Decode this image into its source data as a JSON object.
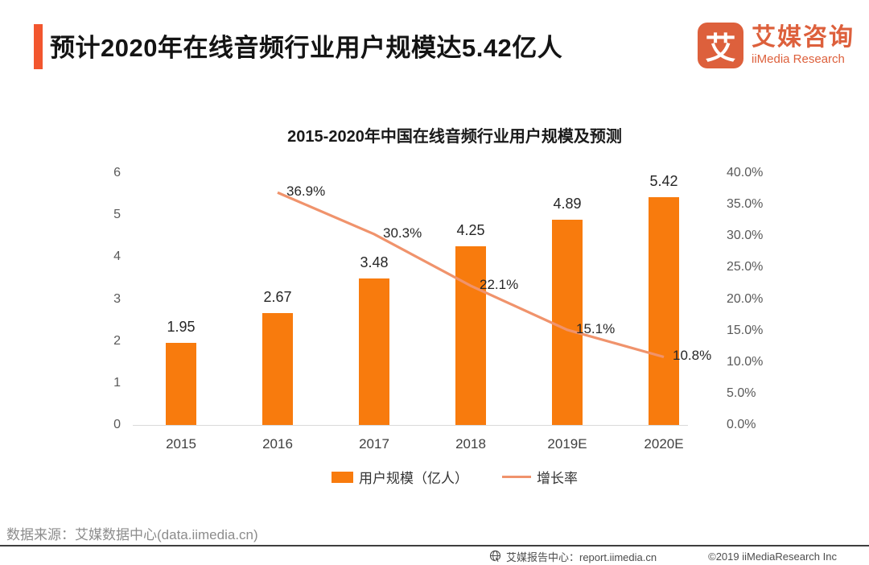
{
  "header": {
    "title": "预计2020年在线音频行业用户规模达5.42亿人",
    "accent_color": "#F2562E"
  },
  "logo": {
    "mark_glyph": "艾",
    "name_cn": "艾媒咨询",
    "name_en": "iiMedia Research",
    "brand_color": "#DD603C"
  },
  "chart_data": {
    "type": "bar",
    "title": "2015-2020年中国在线音频行业用户规模及预测",
    "categories": [
      "2015",
      "2016",
      "2017",
      "2018",
      "2019E",
      "2020E"
    ],
    "series": [
      {
        "name": "用户规模（亿人）",
        "type": "bar",
        "axis": "left",
        "color": "#F87B0D",
        "values": [
          1.95,
          2.67,
          3.48,
          4.25,
          4.89,
          5.42
        ],
        "labels": [
          "1.95",
          "2.67",
          "3.48",
          "4.25",
          "4.89",
          "5.42"
        ]
      },
      {
        "name": "增长率",
        "type": "line",
        "axis": "right",
        "color": "#F0936C",
        "values": [
          null,
          36.9,
          30.3,
          22.1,
          15.1,
          10.8
        ],
        "labels": [
          null,
          "36.9%",
          "30.3%",
          "22.1%",
          "15.1%",
          "10.8%"
        ]
      }
    ],
    "left_axis": {
      "min": 0,
      "max": 6,
      "ticks": [
        "0",
        "1",
        "2",
        "3",
        "4",
        "5",
        "6"
      ]
    },
    "right_axis": {
      "min": 0,
      "max": 40,
      "ticks": [
        "0.0%",
        "5.0%",
        "10.0%",
        "15.0%",
        "20.0%",
        "25.0%",
        "30.0%",
        "35.0%",
        "40.0%"
      ]
    },
    "grid": false,
    "legend_position": "bottom"
  },
  "source": {
    "text": "数据来源：艾媒数据中心(data.iimedia.cn)"
  },
  "footer": {
    "report_center": "艾媒报告中心：report.iimedia.cn",
    "copyright": "©2019  iiMediaResearch  Inc"
  }
}
